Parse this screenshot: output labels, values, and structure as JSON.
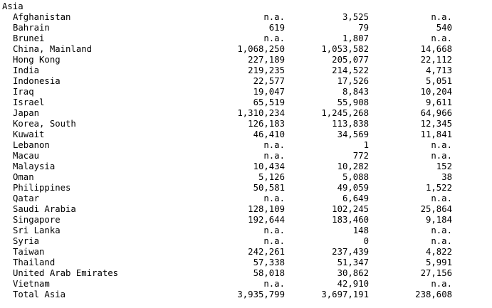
{
  "region": "Asia",
  "rows": [
    {
      "country": "Afghanistan",
      "v1": "n.a.",
      "v2": "3,525",
      "v3": "n.a."
    },
    {
      "country": "Bahrain",
      "v1": "619",
      "v2": "79",
      "v3": "540"
    },
    {
      "country": "Brunei",
      "v1": "n.a.",
      "v2": "1,807",
      "v3": "n.a."
    },
    {
      "country": "China, Mainland",
      "v1": "1,068,250",
      "v2": "1,053,582",
      "v3": "14,668"
    },
    {
      "country": "Hong Kong",
      "v1": "227,189",
      "v2": "205,077",
      "v3": "22,112"
    },
    {
      "country": "India",
      "v1": "219,235",
      "v2": "214,522",
      "v3": "4,713"
    },
    {
      "country": "Indonesia",
      "v1": "22,577",
      "v2": "17,526",
      "v3": "5,051"
    },
    {
      "country": "Iraq",
      "v1": "19,047",
      "v2": "8,843",
      "v3": "10,204"
    },
    {
      "country": "Israel",
      "v1": "65,519",
      "v2": "55,908",
      "v3": "9,611"
    },
    {
      "country": "Japan",
      "v1": "1,310,234",
      "v2": "1,245,268",
      "v3": "64,966"
    },
    {
      "country": "Korea, South",
      "v1": "126,183",
      "v2": "113,838",
      "v3": "12,345"
    },
    {
      "country": "Kuwait",
      "v1": "46,410",
      "v2": "34,569",
      "v3": "11,841"
    },
    {
      "country": "Lebanon",
      "v1": "n.a.",
      "v2": "1",
      "v3": "n.a."
    },
    {
      "country": "Macau",
      "v1": "n.a.",
      "v2": "772",
      "v3": "n.a."
    },
    {
      "country": "Malaysia",
      "v1": "10,434",
      "v2": "10,282",
      "v3": "152"
    },
    {
      "country": "Oman",
      "v1": "5,126",
      "v2": "5,088",
      "v3": "38"
    },
    {
      "country": "Philippines",
      "v1": "50,581",
      "v2": "49,059",
      "v3": "1,522"
    },
    {
      "country": "Qatar",
      "v1": "n.a.",
      "v2": "6,649",
      "v3": "n.a."
    },
    {
      "country": "Saudi Arabia",
      "v1": "128,109",
      "v2": "102,245",
      "v3": "25,864"
    },
    {
      "country": "Singapore",
      "v1": "192,644",
      "v2": "183,460",
      "v3": "9,184"
    },
    {
      "country": "Sri Lanka",
      "v1": "n.a.",
      "v2": "148",
      "v3": "n.a."
    },
    {
      "country": "Syria",
      "v1": "n.a.",
      "v2": "0",
      "v3": "n.a."
    },
    {
      "country": "Taiwan",
      "v1": "242,261",
      "v2": "237,439",
      "v3": "4,822"
    },
    {
      "country": "Thailand",
      "v1": "57,338",
      "v2": "51,347",
      "v3": "5,991"
    },
    {
      "country": "United Arab Emirates",
      "v1": "58,018",
      "v2": "30,862",
      "v3": "27,156"
    },
    {
      "country": "Vietnam",
      "v1": "n.a.",
      "v2": "42,910",
      "v3": "n.a."
    }
  ],
  "total": {
    "country": "Total Asia",
    "v1": "3,935,799",
    "v2": "3,697,191",
    "v3": "238,608"
  }
}
